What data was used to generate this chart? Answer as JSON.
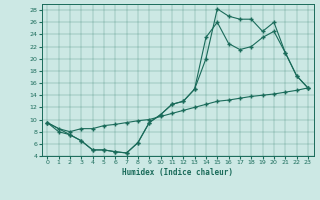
{
  "xlabel": "Humidex (Indice chaleur)",
  "bg_color": "#cce8e4",
  "line_color": "#1a6b5a",
  "xticks": [
    0,
    1,
    2,
    3,
    4,
    5,
    6,
    7,
    8,
    9,
    10,
    11,
    12,
    13,
    14,
    15,
    16,
    17,
    18,
    19,
    20,
    21,
    22,
    23
  ],
  "yticks": [
    4,
    6,
    8,
    10,
    12,
    14,
    16,
    18,
    20,
    22,
    24,
    26,
    28
  ],
  "line1_x": [
    0,
    1,
    2,
    3,
    4,
    5,
    6,
    7,
    8,
    9,
    10,
    11,
    12,
    13,
    14,
    15,
    16,
    17,
    18,
    19,
    20,
    21,
    22,
    23
  ],
  "line1_y": [
    9.5,
    8.0,
    7.5,
    6.5,
    5.0,
    5.0,
    4.7,
    4.5,
    6.2,
    9.5,
    10.8,
    12.5,
    13.0,
    15.0,
    20.0,
    28.2,
    27.0,
    26.5,
    26.5,
    24.5,
    26.0,
    21.0,
    17.2,
    15.2
  ],
  "line2_x": [
    0,
    2,
    3,
    4,
    5,
    6,
    7,
    8,
    9,
    10,
    11,
    12,
    13,
    14,
    15,
    16,
    17,
    18,
    19,
    20,
    21,
    22,
    23
  ],
  "line2_y": [
    9.5,
    7.5,
    6.5,
    5.0,
    5.0,
    4.7,
    4.5,
    6.2,
    9.5,
    10.8,
    12.5,
    13.0,
    15.0,
    23.5,
    26.0,
    22.5,
    21.5,
    22.0,
    23.5,
    24.5,
    21.0,
    17.2,
    15.2
  ],
  "line3_x": [
    0,
    1,
    2,
    3,
    4,
    5,
    6,
    7,
    8,
    9,
    10,
    11,
    12,
    13,
    14,
    15,
    16,
    17,
    18,
    19,
    20,
    21,
    22,
    23
  ],
  "line3_y": [
    9.5,
    8.5,
    8.0,
    8.5,
    8.5,
    9.0,
    9.2,
    9.5,
    9.8,
    10.0,
    10.5,
    11.0,
    11.5,
    12.0,
    12.5,
    13.0,
    13.2,
    13.5,
    13.8,
    14.0,
    14.2,
    14.5,
    14.8,
    15.2
  ]
}
